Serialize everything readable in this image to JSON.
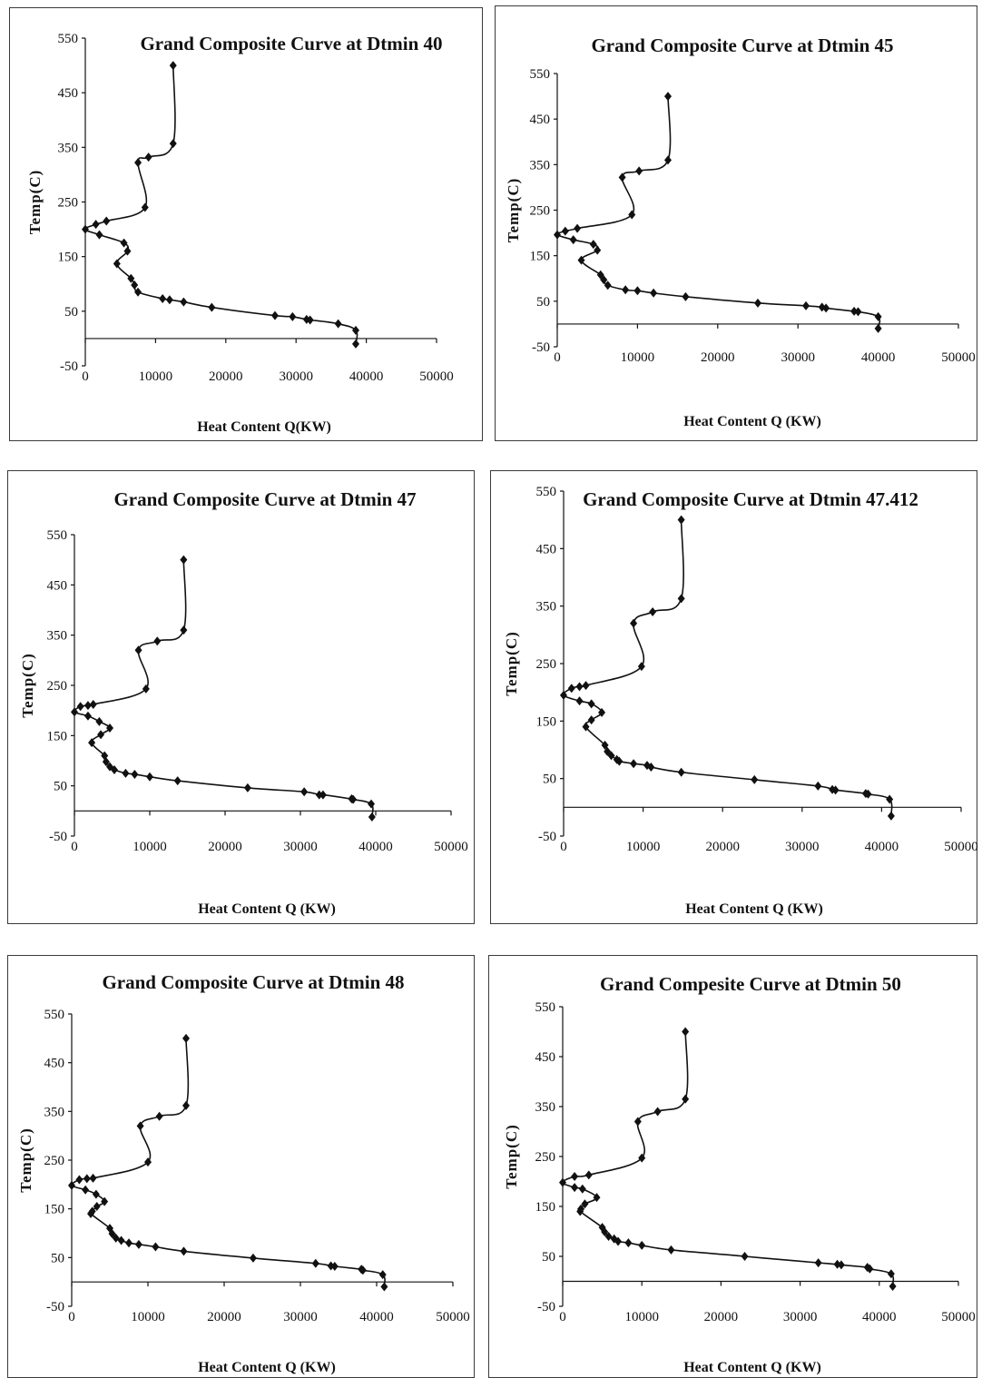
{
  "figure": {
    "charts": [
      {
        "title": "Grand Composite Curve at Dtmin 40"
      },
      {
        "title": "Grand Composite Curve at Dtmin 45"
      },
      {
        "title": "Grand Composite Curve at Dtmin 47"
      },
      {
        "title": "Grand Composite Curve at Dtmin 47.412"
      },
      {
        "title": "Grand Composite Curve at Dtmin 48"
      },
      {
        "title": "Grand Compesite Curve at Dtmin 50"
      }
    ],
    "xlabels": [
      "Heat Content Q(KW)",
      "Heat Content Q (KW)",
      "Heat Content Q (KW)",
      "Heat Content Q (KW)",
      "Heat Content Q (KW)",
      "Heat Content Q (KW)"
    ],
    "ylabel": "Temp(C)",
    "x_ticks": [
      "0",
      "10000",
      "20000",
      "30000",
      "40000",
      "50000"
    ],
    "y_ticks": [
      "-50",
      "50",
      "150",
      "250",
      "350",
      "450",
      "550"
    ]
  },
  "chart_data": [
    {
      "type": "line",
      "title": "Grand Composite Curve at Dtmin 40",
      "xlabel": "Heat Content Q(KW)",
      "ylabel": "Temp(C)",
      "xlim": [
        0,
        50000
      ],
      "ylim": [
        -50,
        550
      ],
      "marker": "diamond",
      "x": [
        12500,
        12500,
        9000,
        7500,
        8500,
        3000,
        1500,
        0,
        2000,
        5500,
        6000,
        4500,
        6500,
        7000,
        7500,
        11000,
        12000,
        14000,
        18000,
        27000,
        29500,
        31500,
        32000,
        36000,
        38500,
        38500
      ],
      "y": [
        500,
        357,
        332,
        322,
        240,
        215,
        209,
        200,
        190,
        175,
        160,
        137,
        110,
        98,
        85,
        73,
        71,
        67,
        57,
        42,
        40,
        35,
        34,
        27,
        15,
        -10
      ]
    },
    {
      "type": "line",
      "title": "Grand Composite Curve at Dtmin 45",
      "xlabel": "Heat Content Q (KW)",
      "ylabel": "Temp(C)",
      "xlim": [
        0,
        50000
      ],
      "ylim": [
        -50,
        550
      ],
      "marker": "diamond",
      "x": [
        13800,
        13800,
        10200,
        8100,
        9300,
        2500,
        1000,
        0,
        2000,
        4500,
        5000,
        3000,
        5400,
        5800,
        6300,
        8500,
        10000,
        12000,
        16000,
        25000,
        31000,
        33000,
        33500,
        37000,
        37500,
        40000,
        40000
      ],
      "y": [
        500,
        360,
        336,
        322,
        240,
        210,
        204,
        196,
        185,
        175,
        162,
        140,
        108,
        97,
        85,
        75,
        73,
        68,
        60,
        46,
        40,
        37,
        35,
        28,
        27,
        16,
        -10
      ]
    },
    {
      "type": "line",
      "title": "Grand Composite Curve at Dtmin 47",
      "xlabel": "Heat Content Q (KW)",
      "ylabel": "Temp(C)",
      "xlim": [
        0,
        50000
      ],
      "ylim": [
        -50,
        550
      ],
      "marker": "diamond",
      "x": [
        14500,
        14500,
        11000,
        8500,
        9500,
        2500,
        1800,
        800,
        0,
        1800,
        3300,
        4700,
        3500,
        2300,
        4000,
        4200,
        4700,
        5300,
        6800,
        8000,
        10000,
        13700,
        23000,
        30500,
        32500,
        33000,
        36800,
        37000,
        39400,
        39500
      ],
      "y": [
        500,
        360,
        338,
        320,
        243,
        212,
        210,
        208,
        197,
        189,
        178,
        165,
        152,
        136,
        110,
        98,
        88,
        82,
        75,
        73,
        68,
        60,
        46,
        38,
        32,
        32,
        24,
        23,
        14,
        -12
      ]
    },
    {
      "type": "line",
      "title": "Grand Composite Curve at Dtmin 47.412",
      "xlabel": "Heat Content Q (KW)",
      "ylabel": "Temp(C)",
      "xlim": [
        0,
        50000
      ],
      "ylim": [
        -50,
        550
      ],
      "marker": "diamond",
      "x": [
        14800,
        14800,
        11200,
        8800,
        9800,
        2800,
        2000,
        1000,
        0,
        2000,
        3500,
        4800,
        3500,
        2800,
        5200,
        5500,
        6000,
        6700,
        7000,
        8800,
        10500,
        11000,
        14800,
        24000,
        32000,
        33800,
        34200,
        38000,
        38300,
        41000,
        41200
      ],
      "y": [
        500,
        363,
        340,
        320,
        245,
        212,
        210,
        207,
        195,
        185,
        180,
        165,
        152,
        140,
        108,
        97,
        90,
        83,
        80,
        76,
        73,
        70,
        61,
        48,
        37,
        31,
        30,
        24,
        23,
        14,
        -15
      ]
    },
    {
      "type": "line",
      "title": "Grand Composite Curve at Dtmin 48",
      "xlabel": "Heat Content Q (KW)",
      "ylabel": "Temp(C)",
      "xlim": [
        0,
        50000
      ],
      "ylim": [
        -50,
        550
      ],
      "marker": "diamond",
      "x": [
        15000,
        15000,
        11500,
        9000,
        10000,
        2800,
        2000,
        1000,
        0,
        1800,
        3200,
        4300,
        3300,
        2700,
        2500,
        5000,
        5300,
        5800,
        6500,
        7500,
        8800,
        11000,
        14700,
        23800,
        32000,
        34000,
        34500,
        38000,
        38200,
        40800,
        41000
      ],
      "y": [
        500,
        362,
        340,
        320,
        246,
        213,
        212,
        210,
        198,
        189,
        180,
        165,
        155,
        145,
        140,
        110,
        99,
        90,
        85,
        80,
        77,
        72,
        63,
        49,
        38,
        33,
        32,
        26,
        24,
        15,
        -10
      ]
    },
    {
      "type": "line",
      "title": "Grand Compesite Curve at Dtmin 50",
      "xlabel": "Heat Content Q (KW)",
      "ylabel": "Temp(C)",
      "xlim": [
        0,
        50000
      ],
      "ylim": [
        -50,
        550
      ],
      "marker": "diamond",
      "x": [
        15500,
        15500,
        12000,
        9500,
        10000,
        3300,
        1500,
        0,
        1500,
        2500,
        4300,
        2800,
        2300,
        2200,
        5000,
        5300,
        5800,
        6500,
        7000,
        8300,
        10000,
        13700,
        23000,
        32300,
        34700,
        35200,
        38500,
        38800,
        41500,
        41700
      ],
      "y": [
        500,
        365,
        340,
        320,
        247,
        213,
        210,
        198,
        188,
        185,
        168,
        155,
        145,
        140,
        108,
        99,
        90,
        85,
        80,
        77,
        72,
        63,
        50,
        37,
        34,
        33,
        28,
        25,
        15,
        -10
      ]
    }
  ]
}
